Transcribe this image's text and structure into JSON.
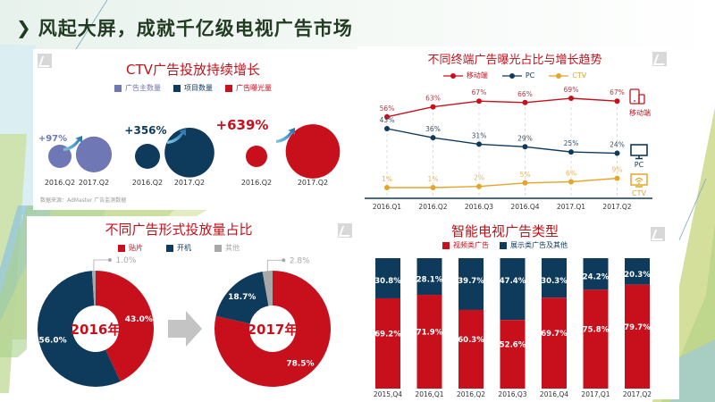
{
  "page": {
    "title": "风起大屏，成就千亿级电视广告市场",
    "title_marker": "❯"
  },
  "colors": {
    "red": "#c8101c",
    "navy": "#0e3a5c",
    "lavender": "#6f77b4",
    "gray": "#a8a8a8",
    "gold": "#e3a52a",
    "green_dark": "#223b22"
  },
  "chart_data": [
    {
      "type": "bubble-comparison",
      "title": "CTV广告投放持续增长",
      "legend": [
        {
          "label": "广告主数量",
          "color": "#6f77b4"
        },
        {
          "label": "项目数量",
          "color": "#0e3a5c"
        },
        {
          "label": "广告曝光量",
          "color": "#c8101c"
        }
      ],
      "groups": [
        {
          "metric": "广告主数量",
          "growth_label": "+97%",
          "growth": 97,
          "periods": [
            "2016.Q2",
            "2017.Q2"
          ],
          "relative_values": [
            1,
            1.97
          ]
        },
        {
          "metric": "项目数量",
          "growth_label": "+356%",
          "growth": 356,
          "periods": [
            "2016.Q2",
            "2017.Q2"
          ],
          "relative_values": [
            1,
            4.56
          ]
        },
        {
          "metric": "广告曝光量",
          "growth_label": "+639%",
          "growth": 639,
          "periods": [
            "2016.Q2",
            "2017.Q2"
          ],
          "relative_values": [
            1,
            7.39
          ]
        }
      ],
      "source": "数据来源：AdMaster 广告监测数据"
    },
    {
      "type": "line",
      "title": "不同终端广告曝光占比与增长趋势",
      "categories": [
        "2016.Q1",
        "2016.Q2",
        "2016.Q3",
        "2016.Q4",
        "2017.Q1",
        "2017.Q2"
      ],
      "series": [
        {
          "name": "移动端",
          "color": "#c8101c",
          "values": [
            56,
            63,
            67,
            66,
            69,
            67
          ],
          "labels": [
            "56%",
            "63%",
            "67%",
            "66%",
            "69%",
            "67%"
          ],
          "end_label": "移动端",
          "icon": "mobile-devices-icon"
        },
        {
          "name": "PC",
          "color": "#0e3a5c",
          "values": [
            43,
            36,
            31,
            29,
            25,
            24
          ],
          "labels": [
            "43%",
            "36%",
            "31%",
            "29%",
            "25%",
            "24%"
          ],
          "end_label": "PC",
          "icon": "monitor-icon"
        },
        {
          "name": "CTV",
          "color": "#e3a52a",
          "values": [
            1,
            1,
            2,
            5,
            6,
            9
          ],
          "labels": [
            "1%",
            "1%",
            "2%",
            "5%",
            "6%",
            "9%"
          ],
          "end_label": "CTV",
          "icon": "smart-tv-icon"
        }
      ],
      "ylim": [
        0,
        75
      ],
      "grid": "vertical-dashed"
    },
    {
      "type": "pie",
      "variant": "donut-pair",
      "title": "不同广告形式投放量占比",
      "legend": [
        {
          "label": "贴片",
          "color": "#c8101c"
        },
        {
          "label": "开机",
          "color": "#0e3a5c"
        },
        {
          "label": "其他",
          "color": "#a8a8a8"
        }
      ],
      "donuts": [
        {
          "center_label": "2016年",
          "slices": [
            {
              "name": "贴片",
              "value": 43.0,
              "label": "43.0%"
            },
            {
              "name": "开机",
              "value": 56.0,
              "label": "56.0%"
            },
            {
              "name": "其他",
              "value": 1.0,
              "label": "1.0%"
            }
          ]
        },
        {
          "center_label": "2017年",
          "slices": [
            {
              "name": "贴片",
              "value": 78.5,
              "label": "78.5%"
            },
            {
              "name": "开机",
              "value": 18.7,
              "label": "18.7%"
            },
            {
              "name": "其他",
              "value": 2.8,
              "label": "2.8%"
            }
          ]
        }
      ]
    },
    {
      "type": "bar",
      "variant": "stacked-100",
      "title": "智能电视广告类型",
      "categories": [
        "2015,Q4",
        "2016,Q1",
        "2016,Q2",
        "2016,Q3",
        "2016,Q4",
        "2017,Q1",
        "2017,Q2"
      ],
      "series": [
        {
          "name": "视频类广告",
          "color": "#c8101c",
          "values": [
            69.2,
            71.9,
            60.3,
            52.6,
            69.7,
            75.8,
            79.7
          ]
        },
        {
          "name": "展示类广告及其他",
          "color": "#0e3a5c",
          "values": [
            30.8,
            28.1,
            39.7,
            47.4,
            30.3,
            24.2,
            20.3
          ]
        }
      ],
      "ylim": [
        0,
        100
      ]
    }
  ]
}
